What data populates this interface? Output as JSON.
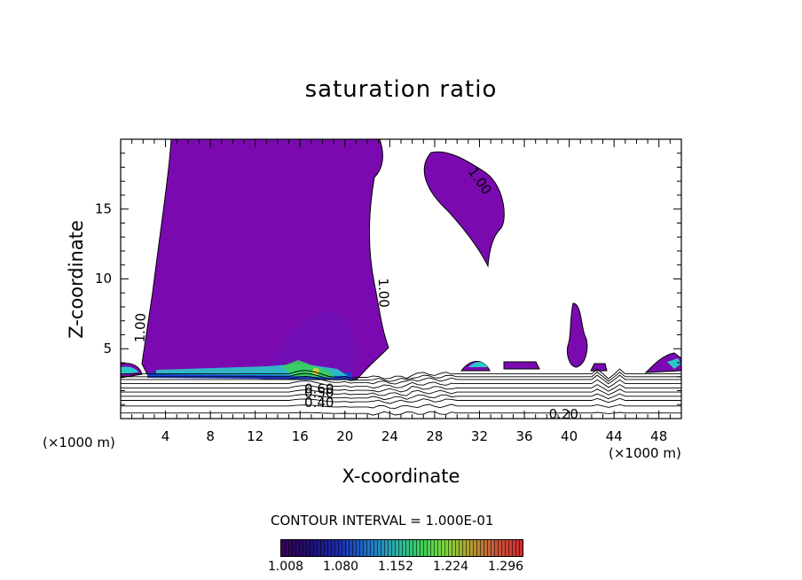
{
  "chart_data": {
    "type": "filled contour",
    "title": "saturation ratio",
    "xlabel": "X-coordinate",
    "ylabel": "Z-coordinate",
    "x_unit_label": "(×1000 m)",
    "xlim": [
      0,
      50
    ],
    "ylim": [
      0,
      20
    ],
    "x_ticks": [
      4,
      8,
      12,
      16,
      20,
      24,
      28,
      32,
      36,
      40,
      44,
      48
    ],
    "y_ticks": [
      5,
      10,
      15
    ],
    "contour_interval_label": "CONTOUR INTERVAL = 1.000E-01",
    "contour_labels": [
      {
        "text": "1.00",
        "x": 1.8,
        "z": 6.5,
        "angle": -88
      },
      {
        "text": "1.00",
        "x": 23.4,
        "z": 9.0,
        "angle": 88
      },
      {
        "text": "1.00",
        "x": 32.0,
        "z": 17.0,
        "angle": 55
      },
      {
        "text": "0.60",
        "x": 17.7,
        "z": 2.1,
        "angle": 0
      },
      {
        "text": "0.50",
        "x": 17.7,
        "z": 1.8,
        "angle": 0
      },
      {
        "text": "0.40",
        "x": 17.7,
        "z": 1.1,
        "angle": 0
      },
      {
        "text": "0.20",
        "x": 39.5,
        "z": 0.3,
        "angle": 0
      }
    ],
    "colorbar": {
      "tick_labels": [
        "1.008",
        "1.080",
        "1.152",
        "1.224",
        "1.296"
      ],
      "colors": [
        "#3a0055",
        "#1a2cb0",
        "#2bb3a8",
        "#39d05a",
        "#b0a030",
        "#d02a30"
      ]
    },
    "fill_color_main": "#7a0ab0"
  }
}
